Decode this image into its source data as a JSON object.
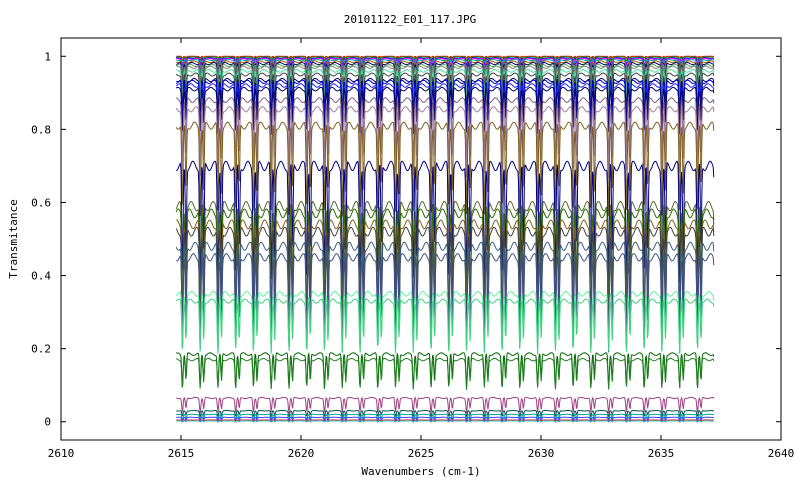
{
  "chart_data": {
    "type": "line",
    "title": "20101122_E01_117.JPG",
    "xlabel": "Wavenumbers (cm-1)",
    "ylabel": "Transmitance",
    "xlim": [
      2610,
      2640
    ],
    "ylim": [
      -0.05,
      1.05
    ],
    "xticks": [
      2610,
      2615,
      2620,
      2625,
      2630,
      2635,
      2640
    ],
    "yticks": [
      0,
      0.2,
      0.4,
      0.6,
      0.8,
      1
    ],
    "ytick_labels": [
      "0",
      "0.2",
      "0.4",
      "0.6",
      "0.8",
      "1"
    ],
    "grid": false,
    "legend": false,
    "x_data_range": [
      2614.8,
      2637.2
    ],
    "line_period_cm": 0.74,
    "series": [
      {
        "baseline": 1.0,
        "depth": 0.005,
        "color": "#ff0000"
      },
      {
        "baseline": 0.998,
        "depth": 0.01,
        "color": "#00aa00"
      },
      {
        "baseline": 0.995,
        "depth": 0.02,
        "color": "#0000ff"
      },
      {
        "baseline": 0.993,
        "depth": 0.03,
        "color": "#ff00ff"
      },
      {
        "baseline": 0.99,
        "depth": 0.04,
        "color": "#00aaaa"
      },
      {
        "baseline": 0.985,
        "depth": 0.06,
        "color": "#aa5500"
      },
      {
        "baseline": 0.98,
        "depth": 0.07,
        "color": "#000080"
      },
      {
        "baseline": 0.975,
        "depth": 0.08,
        "color": "#55aa55"
      },
      {
        "baseline": 0.97,
        "depth": 0.08,
        "color": "#808080"
      },
      {
        "baseline": 0.96,
        "depth": 0.09,
        "color": "#40e0a0"
      },
      {
        "baseline": 0.95,
        "depth": 0.1,
        "color": "#404040"
      },
      {
        "baseline": 0.935,
        "depth": 0.11,
        "color": "#000080"
      },
      {
        "baseline": 0.93,
        "depth": 0.11,
        "color": "#0000cc"
      },
      {
        "baseline": 0.92,
        "depth": 0.12,
        "color": "#2020ff"
      },
      {
        "baseline": 0.91,
        "depth": 0.12,
        "color": "#000060"
      },
      {
        "baseline": 0.88,
        "depth": 0.16,
        "color": "#806080"
      },
      {
        "baseline": 0.855,
        "depth": 0.18,
        "color": "#a080a0"
      },
      {
        "baseline": 0.81,
        "depth": 0.24,
        "color": "#806020"
      },
      {
        "baseline": 0.7,
        "depth": 0.32,
        "color": "#000080"
      },
      {
        "baseline": 0.59,
        "depth": 0.32,
        "color": "#556b2f"
      },
      {
        "baseline": 0.57,
        "depth": 0.3,
        "color": "#2e6b00"
      },
      {
        "baseline": 0.54,
        "depth": 0.3,
        "color": "#806020"
      },
      {
        "baseline": 0.52,
        "depth": 0.3,
        "color": "#404040"
      },
      {
        "baseline": 0.48,
        "depth": 0.28,
        "color": "#3c6080"
      },
      {
        "baseline": 0.45,
        "depth": 0.25,
        "color": "#405080"
      },
      {
        "baseline": 0.35,
        "depth": 0.16,
        "color": "#60f0a0"
      },
      {
        "baseline": 0.33,
        "depth": 0.14,
        "color": "#40d080"
      },
      {
        "baseline": 0.185,
        "depth": 0.09,
        "color": "#006400"
      },
      {
        "baseline": 0.17,
        "depth": 0.08,
        "color": "#208020"
      },
      {
        "baseline": 0.065,
        "depth": 0.04,
        "color": "#a04080"
      },
      {
        "baseline": 0.03,
        "depth": 0.015,
        "color": "#005050"
      },
      {
        "baseline": 0.02,
        "depth": 0.015,
        "color": "#00a0a0"
      },
      {
        "baseline": 0.012,
        "depth": 0.01,
        "color": "#4040ff"
      },
      {
        "baseline": 0.005,
        "depth": 0.005,
        "color": "#c04040"
      },
      {
        "baseline": 0.002,
        "depth": 0.003,
        "color": "#40c0c0"
      }
    ]
  }
}
